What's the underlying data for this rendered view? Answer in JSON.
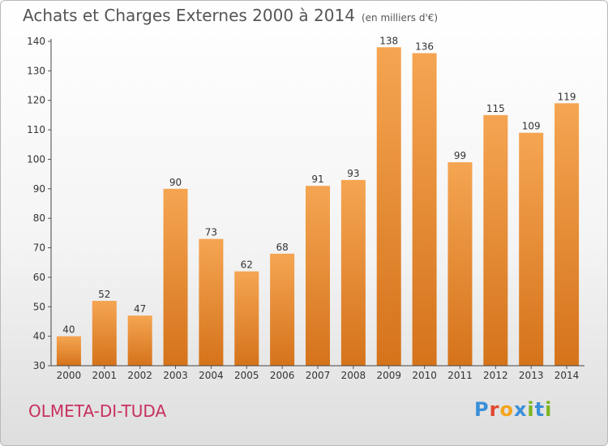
{
  "header": {
    "title": "Achats et Charges Externes 2000 à 2014",
    "subtitle": "(en milliers d'€)"
  },
  "footer": {
    "commune": "OLMETA-DI-TUDA",
    "logo_text": "Proxiti"
  },
  "colors": {
    "bar_top": "#f5a552",
    "bar_bottom": "#d5731b",
    "commune_text": "#c8305e",
    "logo": [
      "#3a8fd8",
      "#e0462e",
      "#f3a51c",
      "#3a8fd8",
      "#7ab51d",
      "#3a8fd8",
      "#7ab51d"
    ]
  },
  "chart_data": {
    "type": "bar",
    "title": "Achats et Charges Externes 2000 à 2014",
    "subtitle": "(en milliers d'€)",
    "categories": [
      "2000",
      "2001",
      "2002",
      "2003",
      "2004",
      "2005",
      "2006",
      "2007",
      "2008",
      "2009",
      "2010",
      "2011",
      "2012",
      "2013",
      "2014"
    ],
    "values": [
      40,
      52,
      47,
      90,
      73,
      62,
      68,
      91,
      93,
      138,
      136,
      99,
      115,
      109,
      119
    ],
    "ylim": [
      30,
      140
    ],
    "yticks": [
      30,
      40,
      50,
      60,
      70,
      80,
      90,
      100,
      110,
      120,
      130,
      140
    ],
    "grid": false,
    "data_labels": true
  }
}
